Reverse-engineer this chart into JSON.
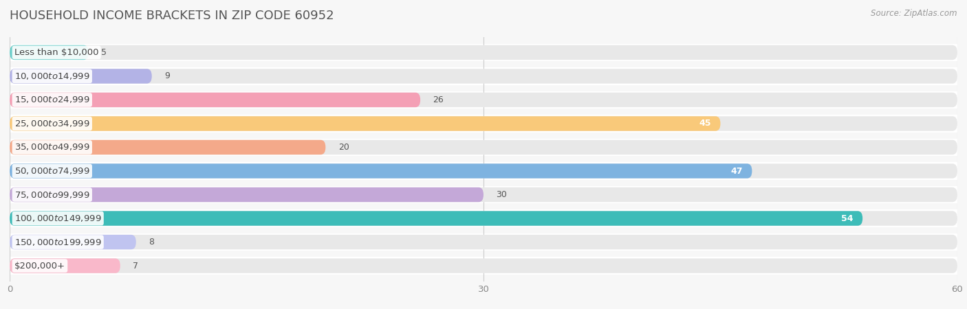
{
  "title": "HOUSEHOLD INCOME BRACKETS IN ZIP CODE 60952",
  "source": "Source: ZipAtlas.com",
  "categories": [
    "Less than $10,000",
    "$10,000 to $14,999",
    "$15,000 to $24,999",
    "$25,000 to $34,999",
    "$35,000 to $49,999",
    "$50,000 to $74,999",
    "$75,000 to $99,999",
    "$100,000 to $149,999",
    "$150,000 to $199,999",
    "$200,000+"
  ],
  "values": [
    5,
    9,
    26,
    45,
    20,
    47,
    30,
    54,
    8,
    7
  ],
  "bar_colors": [
    "#6ECFCB",
    "#B3B3E6",
    "#F4A0B5",
    "#F9C97A",
    "#F4A98A",
    "#7EB3E0",
    "#C4A8D8",
    "#3DBCB8",
    "#C0C4F0",
    "#F9B8CA"
  ],
  "xlim": [
    0,
    60
  ],
  "xticks": [
    0,
    30,
    60
  ],
  "background_color": "#f7f7f7",
  "bar_bg_color": "#e8e8e8",
  "title_fontsize": 13,
  "label_fontsize": 9.5,
  "value_fontsize": 9,
  "bar_height": 0.62,
  "value_inside_threshold": 44
}
